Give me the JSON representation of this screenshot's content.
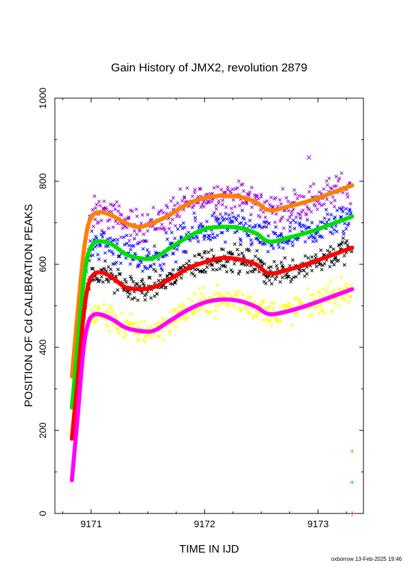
{
  "chart_data": {
    "type": "scatter",
    "title": "Gain History of JMX2, revolution 2879",
    "xlabel": "TIME IN IJD",
    "ylabel": "POSITION OF Cd CALIBRATION PEAKS",
    "xlim": [
      9170.68,
      9173.4
    ],
    "ylim": [
      0,
      1000
    ],
    "xticks": [
      9171,
      9172,
      9173
    ],
    "yticks": [
      0,
      200,
      400,
      600,
      800,
      1000
    ],
    "grid": false,
    "footer": "oxborrow 13-Feb-2025 19:46",
    "fit_curves": [
      {
        "color": "#ff8000",
        "x": [
          9170.83,
          9170.88,
          9170.93,
          9170.97,
          9171.02,
          9171.1,
          9171.2,
          9171.3,
          9171.42,
          9171.55,
          9171.7,
          9171.85,
          9172.0,
          9172.15,
          9172.3,
          9172.45,
          9172.57,
          9172.75,
          9172.95,
          9173.15,
          9173.3
        ],
        "y": [
          330,
          480,
          620,
          690,
          720,
          725,
          715,
          700,
          690,
          700,
          720,
          745,
          760,
          765,
          763,
          750,
          730,
          740,
          755,
          775,
          790
        ]
      },
      {
        "color": "#00e000",
        "x": [
          9170.83,
          9170.88,
          9170.93,
          9170.97,
          9171.02,
          9171.1,
          9171.2,
          9171.3,
          9171.42,
          9171.55,
          9171.7,
          9171.85,
          9172.0,
          9172.15,
          9172.3,
          9172.45,
          9172.57,
          9172.75,
          9172.95,
          9173.15,
          9173.3
        ],
        "y": [
          255,
          400,
          550,
          620,
          650,
          655,
          645,
          625,
          615,
          615,
          640,
          665,
          685,
          690,
          688,
          675,
          655,
          665,
          680,
          700,
          715
        ]
      },
      {
        "color": "#ff0000",
        "x": [
          9170.83,
          9170.88,
          9170.93,
          9170.97,
          9171.02,
          9171.1,
          9171.2,
          9171.3,
          9171.42,
          9171.55,
          9171.7,
          9171.85,
          9172.0,
          9172.15,
          9172.3,
          9172.45,
          9172.57,
          9172.75,
          9172.95,
          9173.15,
          9173.3
        ],
        "y": [
          180,
          320,
          470,
          545,
          575,
          580,
          565,
          545,
          540,
          545,
          565,
          590,
          605,
          615,
          612,
          600,
          578,
          588,
          605,
          625,
          640
        ]
      },
      {
        "color": "#ff00ff",
        "x": [
          9170.83,
          9170.88,
          9170.93,
          9170.97,
          9171.02,
          9171.1,
          9171.2,
          9171.3,
          9171.42,
          9171.55,
          9171.7,
          9171.85,
          9172.0,
          9172.15,
          9172.3,
          9172.45,
          9172.57,
          9172.75,
          9172.95,
          9173.15,
          9173.3
        ],
        "y": [
          80,
          230,
          390,
          455,
          478,
          478,
          465,
          448,
          440,
          440,
          465,
          490,
          508,
          515,
          512,
          498,
          480,
          488,
          505,
          525,
          540
        ]
      }
    ],
    "scatter_series": [
      {
        "color": "#9400d3",
        "offset": 0,
        "spread": 30
      },
      {
        "color": "#0000ff",
        "offset": 0,
        "spread": 30
      },
      {
        "color": "#000000",
        "offset": 0,
        "spread": 25
      },
      {
        "color": "#ffff00",
        "offset": 0,
        "spread": 25
      }
    ],
    "outlier_points": [
      {
        "color": "#9400d3",
        "x": 9172.92,
        "y": 857
      },
      {
        "color": "#ff8000",
        "x": 9173.3,
        "y": 150
      },
      {
        "color": "#00e000",
        "x": 9173.3,
        "y": 75
      },
      {
        "color": "#ff0000",
        "x": 9173.3,
        "y": 0
      }
    ]
  }
}
